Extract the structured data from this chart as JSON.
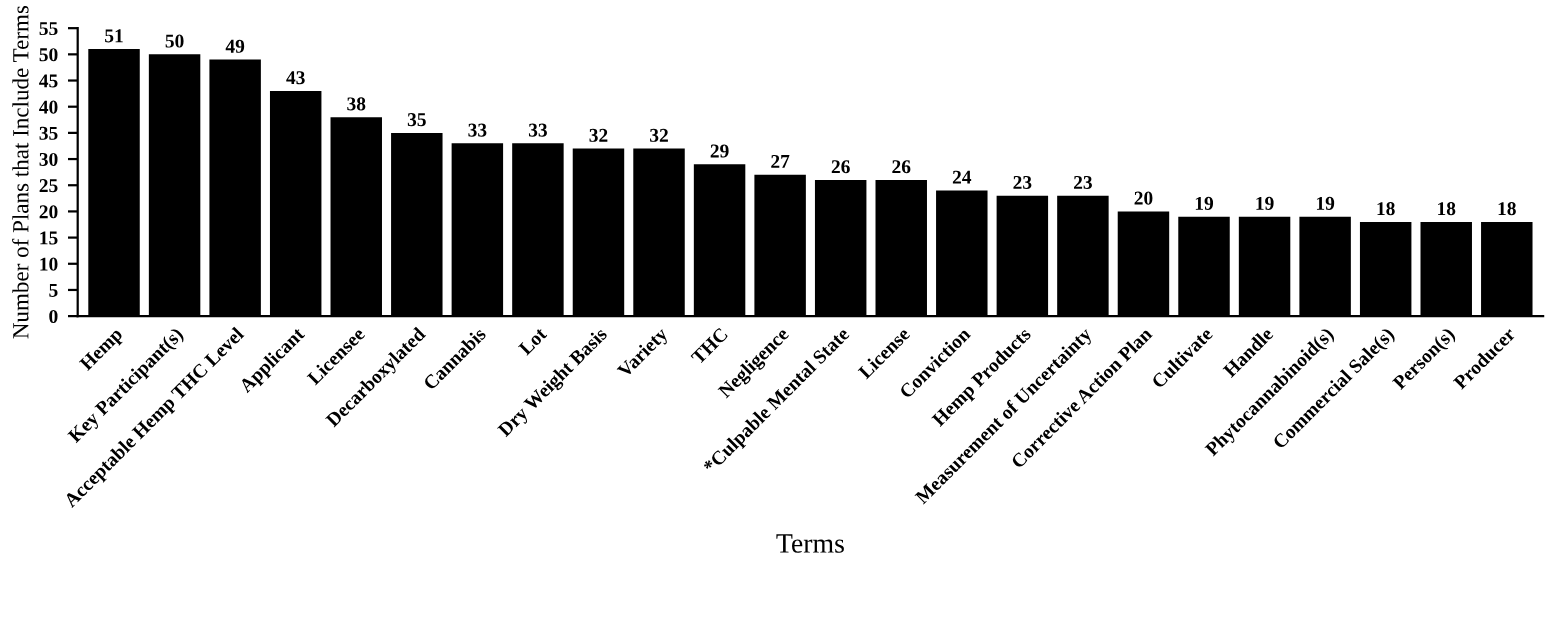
{
  "chart_data": {
    "type": "bar",
    "xlabel": "Terms",
    "ylabel": "Number of Plans that Include Terms",
    "categories": [
      "Hemp",
      "Key Participant(s)",
      "Acceptable Hemp THC Level",
      "Applicant",
      "Licensee",
      "Decarboxylated",
      "Cannabis",
      "Lot",
      "Dry Weight Basis",
      "Variety",
      "THC",
      "Negligence",
      "*Culpable Mental State",
      "License",
      "Conviction",
      "Hemp Products",
      "Measurement of Uncertainty",
      "Corrective Action Plan",
      "Cultivate",
      "Handle",
      "Phytocannabinoid(s)",
      "Commercial Sale(s)",
      "Person(s)",
      "Producer"
    ],
    "values": [
      51,
      50,
      49,
      43,
      38,
      35,
      33,
      33,
      32,
      32,
      29,
      27,
      26,
      26,
      24,
      23,
      23,
      20,
      19,
      19,
      19,
      18,
      18,
      18
    ],
    "color": "#000000",
    "ylim": [
      0,
      55
    ],
    "yticks": [
      0,
      5,
      10,
      15,
      20,
      25,
      30,
      35,
      40,
      45,
      50,
      55
    ],
    "data_labels": true,
    "grid": false,
    "legend": false
  }
}
